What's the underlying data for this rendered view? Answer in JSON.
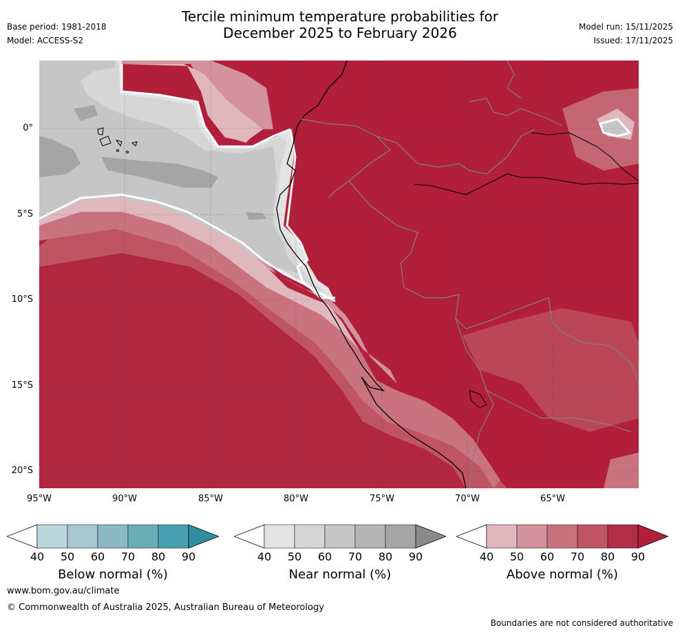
{
  "header": {
    "title_line1": "Tercile minimum temperature probabilities for",
    "title_line2": "December 2025 to February 2026",
    "base_period": "Base period: 1981-2018",
    "model": "Model: ACCESS-S2",
    "model_run": "Model run: 15/11/2025",
    "issued": "Issued: 17/11/2025"
  },
  "map": {
    "x_ticks": [
      "95°W",
      "90°W",
      "85°W",
      "80°W",
      "75°W",
      "70°W",
      "65°W"
    ],
    "y_ticks": [
      "0°",
      "5°S",
      "10°S",
      "15°S",
      "20°S"
    ],
    "lon_range": [
      -95,
      -60
    ],
    "lat_range": [
      -21,
      4
    ]
  },
  "colors": {
    "below": [
      "#ffffff",
      "#bcd6dd",
      "#a6c8d0",
      "#8bb9c3",
      "#6badb8",
      "#48a1b0",
      "#2f8ea0"
    ],
    "near": [
      "#ffffff",
      "#e3e3e3",
      "#d6d6d6",
      "#c6c6c6",
      "#b5b5b5",
      "#a5a5a5",
      "#8a8a8a"
    ],
    "above": [
      "#ffffff",
      "#e0b7bd",
      "#d3939c",
      "#c9737f",
      "#bf5463",
      "#b22e46",
      "#b11f3a"
    ]
  },
  "colorbars": {
    "ticks": [
      "40",
      "50",
      "60",
      "70",
      "80",
      "90"
    ],
    "below_label": "Below normal (%)",
    "near_label": "Near normal (%)",
    "above_label": "Above normal (%)"
  },
  "footer": {
    "website": "www.bom.gov.au/climate",
    "copyright": "© Commonwealth of Australia 2025, Australian Bureau of Meteorology",
    "disclaimer": "Boundaries are not considered authoritative"
  }
}
